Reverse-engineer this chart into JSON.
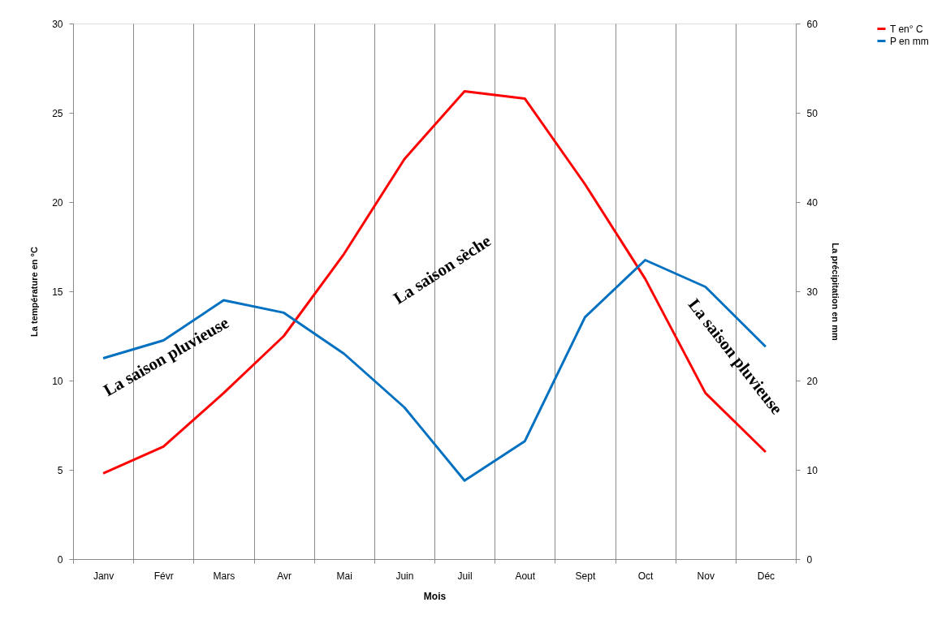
{
  "chart_data": {
    "type": "line",
    "xlabel": "Mois",
    "ylabel": "La température en °C",
    "y2label": "La précipitation en mm",
    "categories": [
      "Janv",
      "Févr",
      "Mars",
      "Avr",
      "Mai",
      "Juin",
      "Juil",
      "Aout",
      "Sept",
      "Oct",
      "Nov",
      "Déc"
    ],
    "series": [
      {
        "name": "T en° C",
        "color": "#ff0000",
        "values": [
          4.8,
          6.3,
          9.3,
          12.5,
          17.1,
          22.4,
          26.2,
          25.8,
          21.0,
          15.7,
          9.3,
          6.0
        ]
      },
      {
        "name": "P en mm",
        "color": "#0070c0",
        "axis": "y2",
        "values": [
          22.5,
          24.5,
          29.0,
          27.6,
          23.0,
          17.0,
          8.8,
          13.2,
          27.1,
          33.5,
          30.5,
          23.8
        ]
      }
    ],
    "ylim": [
      0,
      30
    ],
    "yticks": [
      0,
      5,
      10,
      15,
      20,
      25,
      30
    ],
    "y2lim": [
      0,
      60
    ],
    "y2ticks": [
      0,
      10,
      20,
      30,
      40,
      50,
      60
    ],
    "grid": "x",
    "legend": "right",
    "marker": "none",
    "line_style": "solid",
    "annotations": [
      "La saison pluvieuse",
      "La saison sèche",
      "La saison pluvieuse"
    ]
  }
}
